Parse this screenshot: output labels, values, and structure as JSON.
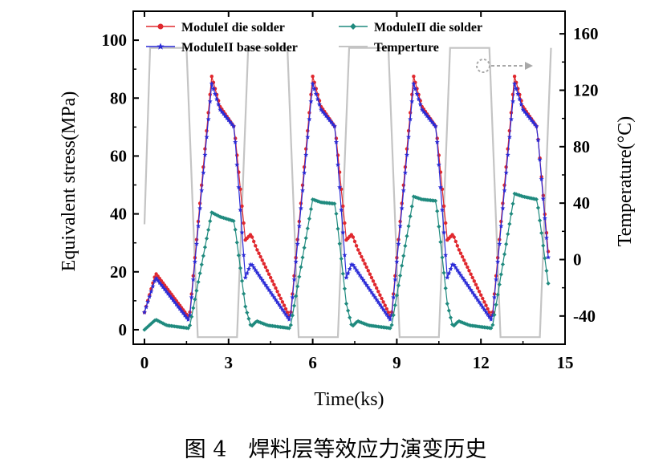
{
  "chart_data": {
    "type": "line",
    "x_label": "Time(ks)",
    "y_label_left": "Equivalent stress(MPa)",
    "y_label_right": "Temperature(°C)",
    "xlim": [
      -0.4,
      15
    ],
    "ylim_left": [
      -5,
      110
    ],
    "ylim_right": [
      -60,
      176
    ],
    "x_ticks": [
      "0",
      "3",
      "6",
      "9",
      "12",
      "15"
    ],
    "x_tick_values": [
      0,
      3,
      6,
      9,
      12,
      15
    ],
    "y_ticks_left": [
      "0",
      "20",
      "40",
      "60",
      "80",
      "100"
    ],
    "y_tick_values_left": [
      0,
      20,
      40,
      60,
      80,
      100
    ],
    "y_ticks_right": [
      "-40",
      "0",
      "40",
      "80",
      "120",
      "160"
    ],
    "y_tick_values_right": [
      -40,
      0,
      40,
      80,
      120,
      160
    ],
    "caption": "图 4　焊料层等效应力演变历史",
    "cycle_period_ks": 3.6,
    "series": [
      {
        "name": "ModuleI  die solder",
        "color": "#e0282e",
        "marker": "circle",
        "axis": "left",
        "points": [
          [
            0,
            6
          ],
          [
            0.4,
            19.5
          ],
          [
            1.6,
            4
          ],
          [
            2.4,
            87.5
          ],
          [
            2.7,
            77
          ],
          [
            3.2,
            70
          ],
          [
            3.6,
            31
          ],
          [
            3.8,
            33
          ],
          [
            4.0,
            28
          ],
          [
            5.2,
            4
          ],
          [
            6.0,
            87.5
          ],
          [
            6.3,
            77
          ],
          [
            6.8,
            70
          ],
          [
            7.2,
            31
          ],
          [
            7.4,
            33
          ],
          [
            7.6,
            28
          ],
          [
            8.8,
            4
          ],
          [
            9.6,
            87.5
          ],
          [
            9.9,
            77
          ],
          [
            10.4,
            70
          ],
          [
            10.8,
            31
          ],
          [
            11.0,
            33
          ],
          [
            11.2,
            28
          ],
          [
            12.4,
            4
          ],
          [
            13.2,
            87.5
          ],
          [
            13.5,
            77
          ],
          [
            14.0,
            70
          ],
          [
            14.4,
            27
          ]
        ]
      },
      {
        "name": "ModuleII die solder",
        "color": "#1f8a7e",
        "marker": "diamond",
        "axis": "left",
        "points": [
          [
            0,
            0
          ],
          [
            0.4,
            3.5
          ],
          [
            0.8,
            1.5
          ],
          [
            1.6,
            0.5
          ],
          [
            2.4,
            40.5
          ],
          [
            2.7,
            39
          ],
          [
            3.2,
            37.5
          ],
          [
            3.6,
            8
          ],
          [
            3.8,
            1
          ],
          [
            4.0,
            3
          ],
          [
            4.4,
            1.5
          ],
          [
            5.2,
            0.5
          ],
          [
            6.0,
            45
          ],
          [
            6.3,
            44
          ],
          [
            6.8,
            43.5
          ],
          [
            7.2,
            9
          ],
          [
            7.4,
            1
          ],
          [
            7.6,
            3
          ],
          [
            8.0,
            1.5
          ],
          [
            8.8,
            0.5
          ],
          [
            9.6,
            46
          ],
          [
            9.9,
            45
          ],
          [
            10.4,
            44.5
          ],
          [
            10.8,
            9
          ],
          [
            11.0,
            1
          ],
          [
            11.2,
            3
          ],
          [
            11.6,
            1.5
          ],
          [
            12.4,
            0.5
          ],
          [
            13.2,
            47
          ],
          [
            13.5,
            46
          ],
          [
            14.0,
            45
          ],
          [
            14.4,
            16
          ]
        ]
      },
      {
        "name": "ModuleII base solder",
        "color": "#2a2ad6",
        "marker": "star",
        "axis": "left",
        "points": [
          [
            0,
            6
          ],
          [
            0.4,
            18
          ],
          [
            1.6,
            3
          ],
          [
            2.4,
            85
          ],
          [
            2.7,
            76
          ],
          [
            3.2,
            70
          ],
          [
            3.6,
            18
          ],
          [
            3.8,
            23
          ],
          [
            4.0,
            20
          ],
          [
            5.2,
            3
          ],
          [
            6.0,
            85
          ],
          [
            6.3,
            76
          ],
          [
            6.8,
            70
          ],
          [
            7.2,
            18
          ],
          [
            7.4,
            23
          ],
          [
            7.6,
            20
          ],
          [
            8.8,
            3
          ],
          [
            9.6,
            85
          ],
          [
            9.9,
            76
          ],
          [
            10.4,
            70
          ],
          [
            10.8,
            18
          ],
          [
            11.0,
            23
          ],
          [
            11.2,
            20
          ],
          [
            12.4,
            3
          ],
          [
            13.2,
            85
          ],
          [
            13.5,
            76
          ],
          [
            14.0,
            70
          ],
          [
            14.4,
            25
          ]
        ]
      },
      {
        "name": "Temperture",
        "color": "#c4c4c4",
        "marker": "none",
        "axis": "right",
        "points": [
          [
            0,
            25
          ],
          [
            0.2,
            150
          ],
          [
            1.5,
            150
          ],
          [
            1.9,
            -55
          ],
          [
            3.3,
            -55
          ],
          [
            3.7,
            150
          ],
          [
            5.1,
            150
          ],
          [
            5.5,
            -55
          ],
          [
            6.9,
            -55
          ],
          [
            7.3,
            150
          ],
          [
            8.7,
            150
          ],
          [
            9.1,
            -55
          ],
          [
            10.5,
            -55
          ],
          [
            10.9,
            150
          ],
          [
            12.3,
            150
          ],
          [
            12.7,
            -55
          ],
          [
            14.1,
            -55
          ],
          [
            14.5,
            150
          ]
        ]
      }
    ]
  }
}
